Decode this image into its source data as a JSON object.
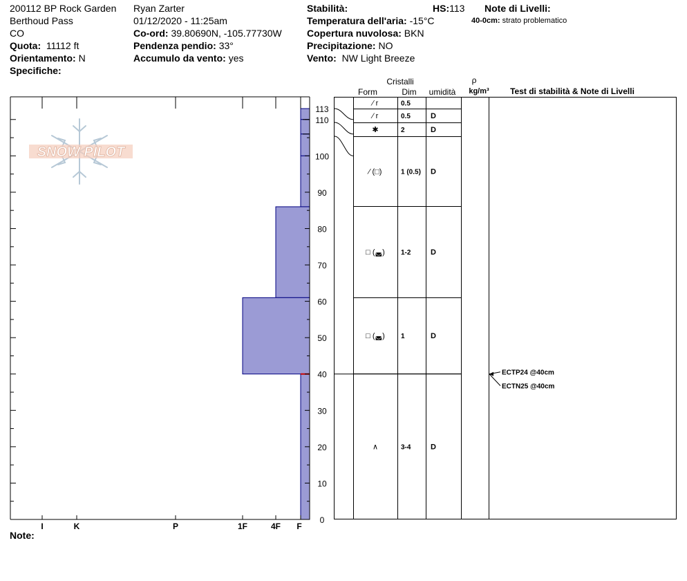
{
  "header": {
    "site": "200112 BP Rock Garden",
    "area": "Berthoud Pass",
    "state": "CO",
    "observer": "Ryan Zarter",
    "datetime": "01/12/2020 - 11:25am",
    "elevation_label": "Quota:",
    "elevation": "11112 ft",
    "aspect_label": "Orientamento:",
    "aspect": "N",
    "specifics_label": "Specifiche:",
    "coord_label": "Co-ord:",
    "coord": "39.80690N, -105.77730W",
    "slope_label": "Pendenza pendio:",
    "slope": "33°",
    "wind_loading_label": "Accumulo da vento:",
    "wind_loading": "yes",
    "stability_label": "Stabilità:",
    "hs_label": "HS:",
    "hs": "113",
    "air_temp_label": "Temperatura dell'aria:",
    "air_temp": "-15°C",
    "sky_label": "Copertura nuvolosa:",
    "sky": "BKN",
    "precip_label": "Precipitazione:",
    "precip": "NO",
    "wind_label": "Vento:",
    "wind": "NW Light Breeze",
    "layer_notes_label": "Note di Livelli:",
    "layer_note_depth": "40-0cm:",
    "layer_note_text": "strato problematico"
  },
  "logo": {
    "text": "SNOW PILOT"
  },
  "footer": {
    "notes_label": "Note:"
  },
  "table_headers": {
    "crystals": "Cristalli",
    "form": "Form",
    "size": "Dim",
    "moisture": "umidità",
    "rho": "ρ",
    "density": "kg/m³",
    "tests": "Test di stabilità & Note di Livelli"
  },
  "colors": {
    "hardness_fill": "#9b9bd5",
    "hardness_stroke": "#000080",
    "marker": "#cc0000"
  },
  "chart_data": {
    "type": "snow_profile_hardness",
    "hs_cm": 113,
    "y_axis": {
      "min": 0,
      "max": 113,
      "ticks": [
        0,
        10,
        20,
        30,
        40,
        50,
        60,
        70,
        80,
        90,
        100,
        110,
        113
      ]
    },
    "hardness_scale": [
      "F",
      "4F",
      "1F",
      "P",
      "K",
      "I"
    ],
    "hardness_tick_labels": [
      "I",
      "K",
      "P",
      "1F",
      "4F",
      "F"
    ],
    "layers": [
      {
        "top": 113,
        "bottom": 110,
        "hardness": "F"
      },
      {
        "top": 110,
        "bottom": 106,
        "hardness": "F"
      },
      {
        "top": 106,
        "bottom": 100,
        "hardness": "F"
      },
      {
        "top": 100,
        "bottom": 86,
        "hardness": "F"
      },
      {
        "top": 86,
        "bottom": 61,
        "hardness": "4F"
      },
      {
        "top": 61,
        "bottom": 40,
        "hardness": "1F"
      },
      {
        "top": 40,
        "bottom": 0,
        "hardness": "F"
      }
    ],
    "crystal_rows": [
      {
        "top": 113,
        "bottom": 110,
        "form": "⁄ r",
        "size": "0.5",
        "moisture": ""
      },
      {
        "top": 110,
        "bottom": 106,
        "form": "⁄ r",
        "size": "0.5",
        "moisture": "D"
      },
      {
        "top": 106,
        "bottom": 100,
        "form": "✱",
        "size": "2",
        "moisture": "D"
      },
      {
        "top": 100,
        "bottom": 86,
        "form": "⁄ (□)",
        "size": "1 (0.5)",
        "moisture": "D"
      },
      {
        "top": 86,
        "bottom": 61,
        "form": "□ (◛)",
        "size": "1-2",
        "moisture": "D"
      },
      {
        "top": 61,
        "bottom": 40,
        "form": "□ (◛)",
        "size": "1",
        "moisture": "D"
      },
      {
        "top": 40,
        "bottom": 0,
        "form": "∧",
        "size": "3-4",
        "moisture": "D"
      }
    ],
    "stability_tests": [
      {
        "depth": 40,
        "label": "ECTP24 @40cm"
      },
      {
        "depth": 40,
        "label": "ECTN25 @40cm"
      }
    ]
  }
}
